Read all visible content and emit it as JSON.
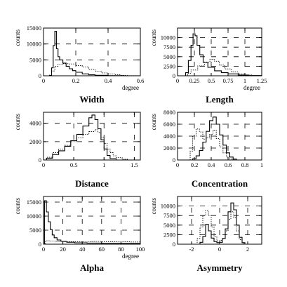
{
  "chart_data": [
    {
      "type": "histogram",
      "title": "Width",
      "xlabel": "degree",
      "ylabel": "counts",
      "xlim": [
        0,
        0.6
      ],
      "ylim": [
        0,
        15000
      ],
      "xticks": [
        "0",
        "0.2",
        "0.4",
        "0.6"
      ],
      "yticks": [
        "0",
        "5000",
        "10000",
        "15000"
      ],
      "grid": "dashed",
      "series": [
        {
          "style": "solid",
          "points": [
            [
              0.0,
              0
            ],
            [
              0.02,
              0
            ],
            [
              0.04,
              100
            ],
            [
              0.05,
              2500
            ],
            [
              0.06,
              9500
            ],
            [
              0.07,
              14000
            ],
            [
              0.08,
              8500
            ],
            [
              0.09,
              6000
            ],
            [
              0.1,
              5000
            ],
            [
              0.12,
              4000
            ],
            [
              0.14,
              3000
            ],
            [
              0.16,
              2200
            ],
            [
              0.18,
              1600
            ],
            [
              0.2,
              1100
            ],
            [
              0.24,
              600
            ],
            [
              0.28,
              300
            ],
            [
              0.32,
              150
            ],
            [
              0.4,
              50
            ],
            [
              0.5,
              0
            ],
            [
              0.6,
              0
            ]
          ]
        },
        {
          "style": "dotted",
          "points": [
            [
              0.0,
              0
            ],
            [
              0.03,
              200
            ],
            [
              0.05,
              1500
            ],
            [
              0.07,
              3000
            ],
            [
              0.09,
              3600
            ],
            [
              0.12,
              3800
            ],
            [
              0.16,
              3700
            ],
            [
              0.2,
              3200
            ],
            [
              0.24,
              2800
            ],
            [
              0.28,
              2000
            ],
            [
              0.32,
              1400
            ],
            [
              0.36,
              900
            ],
            [
              0.4,
              600
            ],
            [
              0.44,
              300
            ],
            [
              0.48,
              150
            ],
            [
              0.52,
              50
            ],
            [
              0.6,
              0
            ]
          ]
        }
      ]
    },
    {
      "type": "histogram",
      "title": "Length",
      "xlabel": "degree",
      "ylabel": "counts",
      "xlim": [
        0,
        1.25
      ],
      "ylim": [
        0,
        12500
      ],
      "xticks": [
        "0",
        "0.25",
        "0.5",
        "0.75",
        "1",
        "1.25"
      ],
      "yticks": [
        "0",
        "2500",
        "5000",
        "7500",
        "10000"
      ],
      "grid": "dashed",
      "series": [
        {
          "style": "solid",
          "points": [
            [
              0.0,
              0
            ],
            [
              0.08,
              0
            ],
            [
              0.12,
              800
            ],
            [
              0.16,
              4000
            ],
            [
              0.2,
              8000
            ],
            [
              0.23,
              11000
            ],
            [
              0.26,
              10500
            ],
            [
              0.29,
              8000
            ],
            [
              0.33,
              5500
            ],
            [
              0.38,
              3500
            ],
            [
              0.45,
              2200
            ],
            [
              0.55,
              1300
            ],
            [
              0.65,
              800
            ],
            [
              0.75,
              500
            ],
            [
              0.9,
              200
            ],
            [
              1.05,
              50
            ],
            [
              1.25,
              0
            ]
          ]
        },
        {
          "style": "dotted",
          "points": [
            [
              0.0,
              0
            ],
            [
              0.1,
              0
            ],
            [
              0.15,
              600
            ],
            [
              0.2,
              1500
            ],
            [
              0.3,
              2600
            ],
            [
              0.4,
              3600
            ],
            [
              0.48,
              4300
            ],
            [
              0.55,
              3800
            ],
            [
              0.62,
              2800
            ],
            [
              0.7,
              1800
            ],
            [
              0.8,
              1000
            ],
            [
              0.9,
              500
            ],
            [
              1.0,
              200
            ],
            [
              1.1,
              50
            ],
            [
              1.25,
              0
            ]
          ]
        }
      ]
    },
    {
      "type": "histogram",
      "title": "Distance",
      "xlabel": "",
      "ylabel": "counts",
      "xlim": [
        0,
        1.6
      ],
      "ylim": [
        0,
        5200
      ],
      "xticks": [
        "0",
        "0.5",
        "1",
        "1.5"
      ],
      "yticks": [
        "0",
        "2000",
        "4000"
      ],
      "grid": "dashed",
      "series": [
        {
          "style": "solid",
          "points": [
            [
              0.0,
              0
            ],
            [
              0.05,
              200
            ],
            [
              0.15,
              600
            ],
            [
              0.25,
              1000
            ],
            [
              0.35,
              1500
            ],
            [
              0.45,
              2100
            ],
            [
              0.55,
              2800
            ],
            [
              0.65,
              3700
            ],
            [
              0.75,
              4600
            ],
            [
              0.8,
              4900
            ],
            [
              0.85,
              4400
            ],
            [
              0.9,
              3400
            ],
            [
              0.95,
              2200
            ],
            [
              1.0,
              1200
            ],
            [
              1.05,
              500
            ],
            [
              1.1,
              150
            ],
            [
              1.2,
              0
            ],
            [
              1.6,
              0
            ]
          ]
        },
        {
          "style": "dotted",
          "points": [
            [
              0.0,
              0
            ],
            [
              0.05,
              300
            ],
            [
              0.15,
              800
            ],
            [
              0.25,
              1200
            ],
            [
              0.35,
              1600
            ],
            [
              0.45,
              2000
            ],
            [
              0.55,
              2400
            ],
            [
              0.65,
              2800
            ],
            [
              0.75,
              3100
            ],
            [
              0.85,
              3300
            ],
            [
              0.9,
              3000
            ],
            [
              0.95,
              2500
            ],
            [
              1.0,
              1800
            ],
            [
              1.05,
              1200
            ],
            [
              1.1,
              800
            ],
            [
              1.15,
              450
            ],
            [
              1.2,
              250
            ],
            [
              1.3,
              80
            ],
            [
              1.4,
              0
            ],
            [
              1.6,
              0
            ]
          ]
        }
      ]
    },
    {
      "type": "histogram",
      "title": "Concentration",
      "xlabel": "",
      "ylabel": "counts",
      "xlim": [
        0,
        1
      ],
      "ylim": [
        0,
        8000
      ],
      "xticks": [
        "0",
        "0.2",
        "0.4",
        "0.6",
        "0.8",
        "1"
      ],
      "yticks": [
        "0",
        "2000",
        "4000",
        "6000",
        "8000"
      ],
      "grid": "dashed",
      "series": [
        {
          "style": "solid",
          "points": [
            [
              0.0,
              0
            ],
            [
              0.14,
              0
            ],
            [
              0.18,
              200
            ],
            [
              0.22,
              700
            ],
            [
              0.26,
              1600
            ],
            [
              0.3,
              3000
            ],
            [
              0.34,
              4800
            ],
            [
              0.38,
              6600
            ],
            [
              0.42,
              7200
            ],
            [
              0.46,
              6000
            ],
            [
              0.5,
              4200
            ],
            [
              0.54,
              2500
            ],
            [
              0.58,
              1200
            ],
            [
              0.62,
              500
            ],
            [
              0.66,
              150
            ],
            [
              0.7,
              0
            ],
            [
              1.0,
              0
            ]
          ]
        },
        {
          "style": "dotted",
          "points": [
            [
              0.0,
              0
            ],
            [
              0.12,
              0
            ],
            [
              0.15,
              1500
            ],
            [
              0.18,
              4000
            ],
            [
              0.22,
              5200
            ],
            [
              0.26,
              4700
            ],
            [
              0.3,
              3500
            ],
            [
              0.34,
              3700
            ],
            [
              0.38,
              4300
            ],
            [
              0.42,
              5000
            ],
            [
              0.46,
              3600
            ],
            [
              0.5,
              2200
            ],
            [
              0.54,
              1200
            ],
            [
              0.58,
              500
            ],
            [
              0.62,
              150
            ],
            [
              0.66,
              0
            ],
            [
              1.0,
              0
            ]
          ]
        }
      ]
    },
    {
      "type": "histogram",
      "title": "Alpha",
      "xlabel": "degree",
      "ylabel": "counts",
      "xlim": [
        0,
        100
      ],
      "ylim": [
        0,
        17000
      ],
      "xticks": [
        "0",
        "20",
        "40",
        "60",
        "80",
        "100"
      ],
      "yticks": [
        "0",
        "5000",
        "10000",
        "15000"
      ],
      "grid": "dashed",
      "series": [
        {
          "style": "solid",
          "points": [
            [
              0,
              0
            ],
            [
              1,
              15500
            ],
            [
              3,
              11500
            ],
            [
              5,
              8000
            ],
            [
              7,
              5200
            ],
            [
              9,
              3300
            ],
            [
              11,
              2300
            ],
            [
              14,
              1500
            ],
            [
              18,
              1000
            ],
            [
              24,
              700
            ],
            [
              32,
              500
            ],
            [
              45,
              400
            ],
            [
              60,
              350
            ],
            [
              80,
              300
            ],
            [
              100,
              300
            ]
          ]
        },
        {
          "style": "dotted",
          "points": [
            [
              0,
              0
            ],
            [
              2,
              1200
            ],
            [
              6,
              1100
            ],
            [
              12,
              1000
            ],
            [
              20,
              900
            ],
            [
              30,
              900
            ],
            [
              40,
              850
            ],
            [
              50,
              950
            ],
            [
              60,
              850
            ],
            [
              70,
              900
            ],
            [
              80,
              850
            ],
            [
              90,
              800
            ],
            [
              100,
              800
            ]
          ]
        }
      ]
    },
    {
      "type": "histogram",
      "title": "Asymmetry",
      "xlabel": "",
      "ylabel": "counts",
      "xlim": [
        -3,
        3
      ],
      "ylim": [
        0,
        12500
      ],
      "xticks": [
        "-2",
        "0",
        "2"
      ],
      "yticks": [
        "0",
        "2500",
        "5000",
        "7500",
        "10000"
      ],
      "grid": "dashed",
      "series": [
        {
          "style": "solid",
          "points": [
            [
              -3,
              0
            ],
            [
              -1.6,
              0
            ],
            [
              -1.4,
              500
            ],
            [
              -1.2,
              2000
            ],
            [
              -1.0,
              5200
            ],
            [
              -0.8,
              3500
            ],
            [
              -0.6,
              1600
            ],
            [
              -0.4,
              700
            ],
            [
              -0.2,
              400
            ],
            [
              0.0,
              500
            ],
            [
              0.2,
              1500
            ],
            [
              0.4,
              4000
            ],
            [
              0.6,
              8500
            ],
            [
              0.8,
              10800
            ],
            [
              1.0,
              9000
            ],
            [
              1.2,
              5000
            ],
            [
              1.4,
              1800
            ],
            [
              1.6,
              400
            ],
            [
              1.8,
              0
            ],
            [
              3,
              0
            ]
          ]
        },
        {
          "style": "dotted",
          "points": [
            [
              -3,
              0
            ],
            [
              -1.8,
              0
            ],
            [
              -1.6,
              1500
            ],
            [
              -1.4,
              4500
            ],
            [
              -1.2,
              7500
            ],
            [
              -1.0,
              8800
            ],
            [
              -0.8,
              7500
            ],
            [
              -0.6,
              4500
            ],
            [
              -0.4,
              2000
            ],
            [
              -0.2,
              900
            ],
            [
              0.0,
              1000
            ],
            [
              0.2,
              1500
            ],
            [
              0.4,
              3500
            ],
            [
              0.6,
              6500
            ],
            [
              0.8,
              8500
            ],
            [
              1.0,
              7000
            ],
            [
              1.2,
              3500
            ],
            [
              1.4,
              1200
            ],
            [
              1.6,
              300
            ],
            [
              1.8,
              0
            ],
            [
              3,
              0
            ]
          ]
        }
      ]
    }
  ]
}
